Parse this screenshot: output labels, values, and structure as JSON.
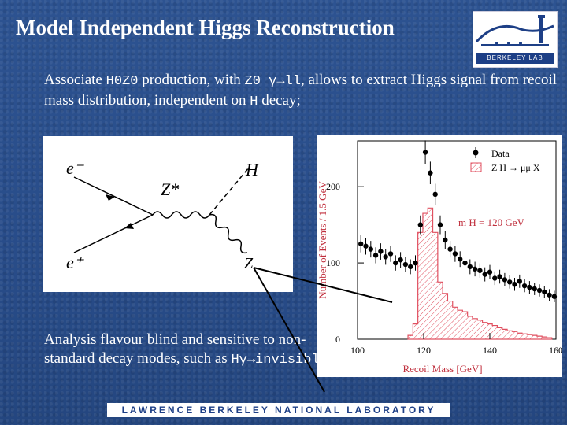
{
  "slide": {
    "title": "Model Independent Higgs Reconstruction",
    "intro_a": "Associate ",
    "intro_code1": "H0Z0",
    "intro_b": " production, with ",
    "intro_code2": "Z0 γ→ll",
    "intro_c": ", allows to extract Higgs signal from recoil mass distribution, independent on ",
    "intro_code3": "H",
    "intro_d": " decay;",
    "bottom_a": "Analysis flavour blind and sensitive to non-standard decay modes, such as ",
    "bottom_code": "Hγ→invisible",
    "footer": "LAWRENCE BERKELEY NATIONAL LABORATORY",
    "logo_text": "BERKELEY LAB"
  },
  "feynman": {
    "e_minus": "e⁻",
    "e_plus": "e⁺",
    "z_star": "Z*",
    "higgs": "H",
    "z_out": "Z"
  },
  "chart_data": {
    "type": "scatter",
    "xlabel": "Recoil Mass  [GeV]",
    "ylabel": "Number of Events / 1.5 GeV",
    "xlim": [
      100,
      160
    ],
    "ylim": [
      0,
      260
    ],
    "xticks": [
      100,
      120,
      140,
      160
    ],
    "yticks": [
      0,
      100,
      200
    ],
    "legend": [
      "Data",
      "Z H → μμ X"
    ],
    "annotation": "m H  =  120  GeV",
    "series": [
      {
        "name": "Data",
        "x": [
          101,
          102.5,
          104,
          105.5,
          107,
          108.5,
          110,
          111.5,
          113,
          114.5,
          116,
          117.5,
          119,
          120.5,
          122,
          123.5,
          125,
          126.5,
          128,
          129.5,
          131,
          132.5,
          134,
          135.5,
          137,
          138.5,
          140,
          141.5,
          143,
          144.5,
          146,
          147.5,
          149,
          150.5,
          152,
          153.5,
          155,
          156.5,
          158,
          159.5
        ],
        "y": [
          125,
          122,
          118,
          110,
          115,
          108,
          112,
          100,
          104,
          98,
          95,
          100,
          150,
          245,
          218,
          190,
          150,
          130,
          118,
          112,
          105,
          100,
          95,
          92,
          90,
          85,
          88,
          80,
          82,
          78,
          75,
          72,
          76,
          70,
          68,
          66,
          64,
          62,
          58,
          56
        ]
      },
      {
        "name": "Z H → μμ X",
        "x": [
          116,
          117.5,
          119,
          120.5,
          122,
          123.5,
          125,
          126.5,
          128,
          129.5,
          131,
          132.5,
          134,
          135.5,
          137,
          138.5,
          140,
          141.5,
          143,
          144.5,
          146,
          147.5,
          149,
          150.5,
          152,
          153.5,
          155,
          156.5,
          158
        ],
        "y": [
          5,
          20,
          140,
          165,
          172,
          140,
          75,
          60,
          50,
          42,
          38,
          36,
          30,
          27,
          25,
          22,
          20,
          18,
          15,
          13,
          11,
          10,
          8,
          7,
          6,
          5,
          4,
          3,
          2
        ]
      }
    ]
  }
}
